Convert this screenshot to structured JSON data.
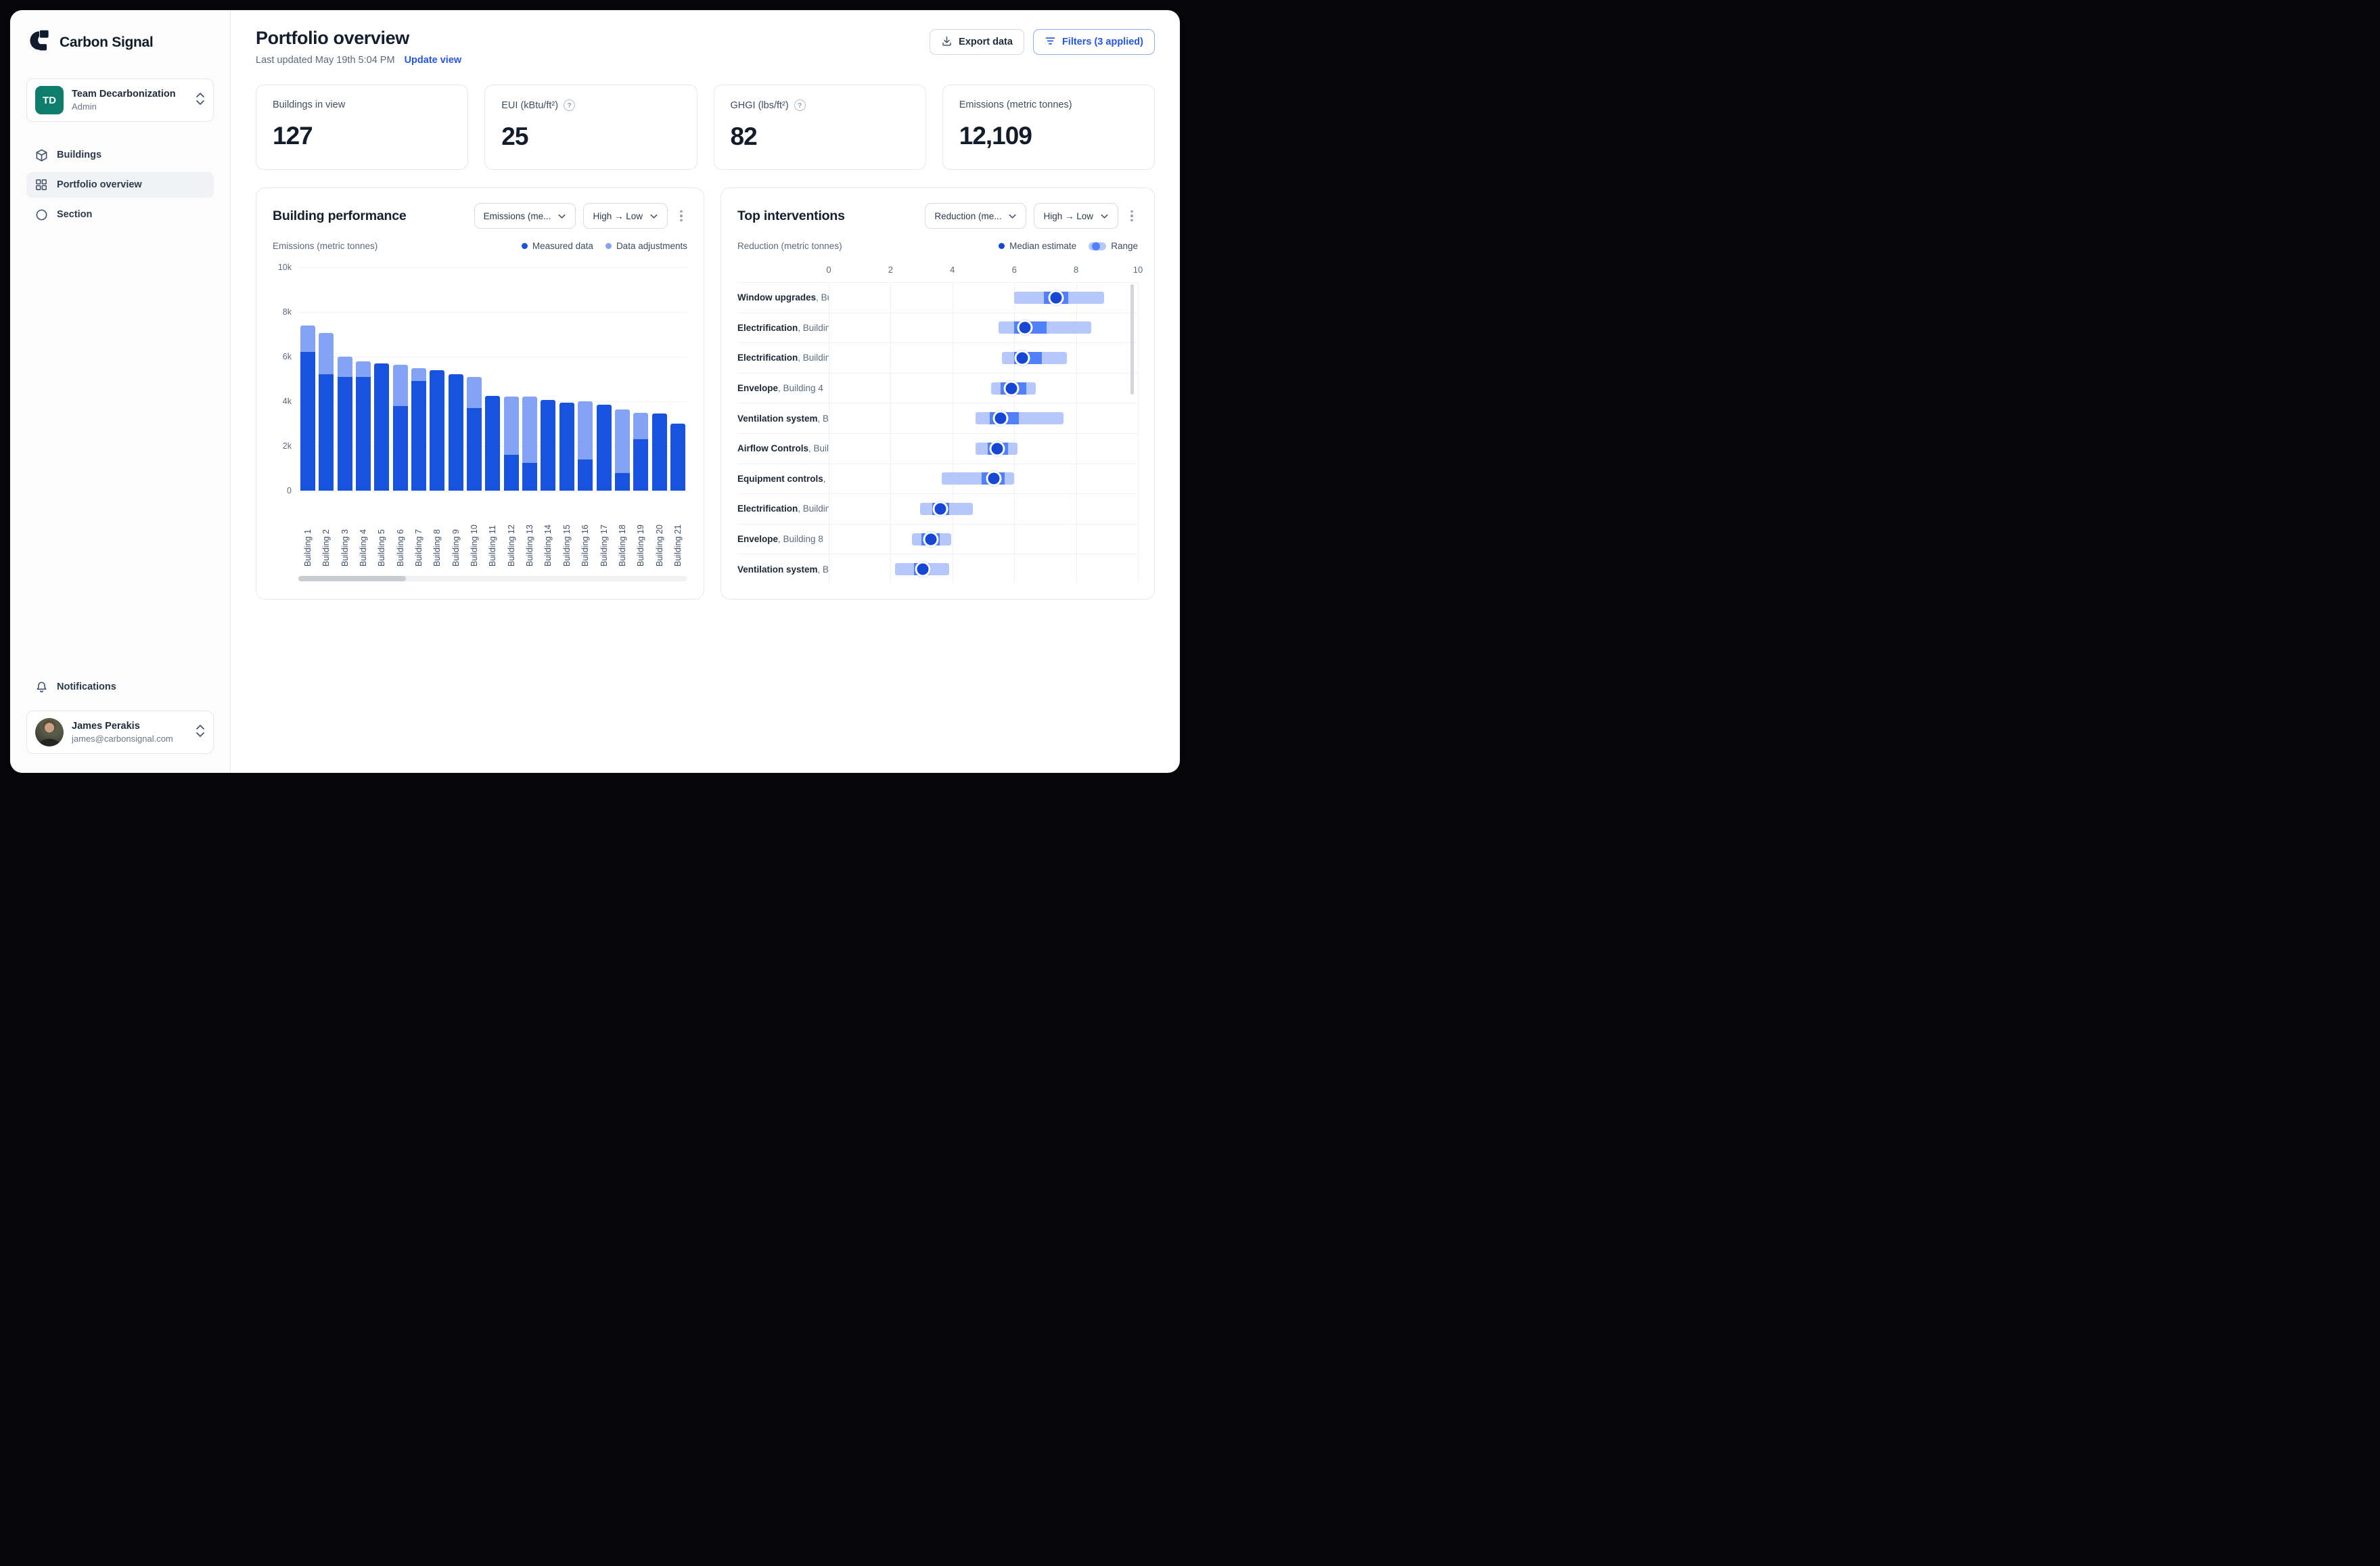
{
  "brand": "Carbon Signal",
  "sidebar": {
    "team": {
      "initials": "TD",
      "name": "Team Decarbonization",
      "role": "Admin"
    },
    "nav": [
      {
        "label": "Buildings",
        "icon": "cube-icon",
        "active": false
      },
      {
        "label": "Portfolio overview",
        "icon": "grid-icon",
        "active": true
      },
      {
        "label": "Section",
        "icon": "circle-icon",
        "active": false
      }
    ],
    "notifications_label": "Notifications",
    "user": {
      "name": "James Perakis",
      "email": "james@carbonsignal.com"
    }
  },
  "header": {
    "title": "Portfolio overview",
    "last_updated": "Last updated May 19th 5:04 PM",
    "update_link": "Update view",
    "export_label": "Export data",
    "filters_label": "Filters (3 applied)"
  },
  "stats": [
    {
      "label": "Buildings in view",
      "value": "127",
      "help": false
    },
    {
      "label": "EUI (kBtu/ft²)",
      "value": "25",
      "help": true
    },
    {
      "label": "GHGI (lbs/ft²)",
      "value": "82",
      "help": true
    },
    {
      "label": "Emissions (metric tonnes)",
      "value": "12,109",
      "help": false
    }
  ],
  "building_performance": {
    "title": "Building performance",
    "metric_select": "Emissions (me...",
    "sort_select": "High → Low",
    "axis_title": "Emissions (metric tonnes)",
    "legend": [
      {
        "label": "Measured data",
        "color": "#1853e0"
      },
      {
        "label": "Data adjustments",
        "color": "#84a3f7"
      }
    ]
  },
  "top_interventions": {
    "title": "Top interventions",
    "metric_select": "Reduction (me...",
    "sort_select": "High → Low",
    "axis_title": "Reduction (metric tonnes)",
    "legend_median": "Median estimate",
    "legend_range": "Range"
  },
  "colors": {
    "accent": "#2456e8",
    "measured": "#1853e0",
    "adjustments": "#84a3f7",
    "range_outer": "#b5c7fb",
    "range_inner": "#5181fa",
    "median_dot": "#1546d4",
    "team_avatar": "#0e7d6c"
  },
  "chart_data": [
    {
      "type": "bar",
      "stacked": true,
      "title": "Building performance",
      "ylabel": "Emissions (metric tonnes)",
      "ylim": [
        0,
        10000
      ],
      "ytick_labels": [
        "10k",
        "8k",
        "6k",
        "4k",
        "2k",
        "0"
      ],
      "grid": true,
      "legend_position": "top-right",
      "categories": [
        "Building 1",
        "Building 2",
        "Building 3",
        "Building 4",
        "Building 5",
        "Building 6",
        "Building 7",
        "Building 8",
        "Building 9",
        "Building 10",
        "Building 11",
        "Building 12",
        "Building 13",
        "Building 14",
        "Building 15",
        "Building 16",
        "Building 17",
        "Building 18",
        "Building 19",
        "Building 20",
        "Building 21"
      ],
      "series": [
        {
          "name": "Measured data",
          "values": [
            6200,
            5200,
            5100,
            5100,
            5700,
            3800,
            4900,
            5400,
            5200,
            3700,
            4250,
            1600,
            1250,
            4050,
            3950,
            1400,
            3850,
            800,
            2300,
            3450,
            3000
          ]
        },
        {
          "name": "Data adjustments",
          "values": [
            1200,
            1850,
            900,
            700,
            0,
            1850,
            600,
            0,
            0,
            1400,
            0,
            2600,
            2950,
            0,
            0,
            2600,
            0,
            2850,
            1200,
            0,
            0
          ]
        }
      ]
    },
    {
      "type": "range-dot",
      "title": "Top interventions",
      "xlabel": "Reduction (metric tonnes)",
      "xlim": [
        0,
        10
      ],
      "xticks": [
        0,
        2,
        4,
        6,
        8,
        10
      ],
      "grid": true,
      "legend_position": "top-right",
      "rows": [
        {
          "label_bold": "Window upgrades",
          "label_rest": ", Bui...",
          "range": [
            6.0,
            8.9
          ],
          "band": [
            6.95,
            7.75
          ],
          "median": 7.35
        },
        {
          "label_bold": "Electrification",
          "label_rest": ", Buildin...",
          "range": [
            5.5,
            8.5
          ],
          "band": [
            6.0,
            7.05
          ],
          "median": 6.35
        },
        {
          "label_bold": "Electrification",
          "label_rest": ", Buildin...",
          "range": [
            5.6,
            7.7
          ],
          "band": [
            6.0,
            6.9
          ],
          "median": 6.25
        },
        {
          "label_bold": "Envelope",
          "label_rest": ", Building 4",
          "range": [
            5.25,
            6.7
          ],
          "band": [
            5.55,
            6.4
          ],
          "median": 5.9
        },
        {
          "label_bold": "Ventilation system",
          "label_rest": ", Bu...",
          "range": [
            4.75,
            7.6
          ],
          "band": [
            5.2,
            6.15
          ],
          "median": 5.55
        },
        {
          "label_bold": "Airflow Controls",
          "label_rest": ", Build...",
          "range": [
            4.75,
            6.1
          ],
          "band": [
            5.15,
            5.8
          ],
          "median": 5.45
        },
        {
          "label_bold": "Equipment controls",
          "label_rest": ", B...",
          "range": [
            3.65,
            6.0
          ],
          "band": [
            4.95,
            5.7
          ],
          "median": 5.35
        },
        {
          "label_bold": "Electrification",
          "label_rest": ", Buildin...",
          "range": [
            2.95,
            4.65
          ],
          "band": [
            3.35,
            3.9
          ],
          "median": 3.6
        },
        {
          "label_bold": "Envelope",
          "label_rest": ", Building 8",
          "range": [
            2.7,
            3.95
          ],
          "band": [
            3.0,
            3.6
          ],
          "median": 3.3
        },
        {
          "label_bold": "Ventilation system",
          "label_rest": ", B...",
          "range": [
            2.15,
            3.9
          ],
          "band": [
            2.75,
            3.2
          ],
          "median": 3.05
        }
      ]
    }
  ]
}
